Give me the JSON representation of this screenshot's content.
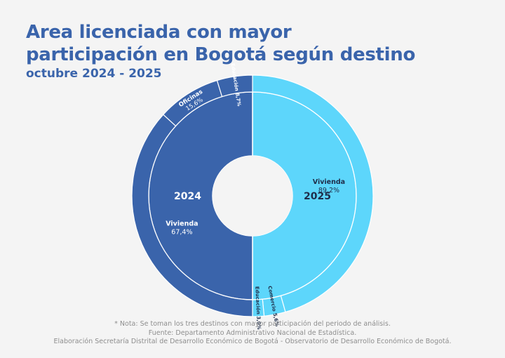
{
  "title_line1": "Area licenciada con mayor",
  "title_line2": "participación en Bogotá según destino",
  "subtitle": "octubre 2024 - 2025",
  "footer": {
    "note": "* Nota: Se toman los tres destinos con mayor participación del periodo de análisis.",
    "source": "Fuente: Departamento Administrativo Nacional de Estadística.",
    "credit": "Elaboración Secretaría Distrital de Desarrollo Económico de Bogotá - Observatorio de Desarrollo Económico de Bogotá."
  },
  "colors": {
    "y2024": "#3a64ab",
    "y2025": "#5dd6fb",
    "separator": "#ffffff",
    "text": "#ffffff",
    "text_dark": "#1f2d4a"
  },
  "chart_data": {
    "type": "pie",
    "subtype": "sunburst",
    "groups": [
      {
        "name": "2024",
        "share": 0.5,
        "categories": [
          "Vivienda",
          "Oficinas",
          "Educación"
        ],
        "values": [
          67.4,
          15.6,
          8.7
        ],
        "labels": [
          "67,4%",
          "15,6%",
          "8,7%"
        ]
      },
      {
        "name": "2025",
        "share": 0.5,
        "categories": [
          "Vivienda",
          "Comercio",
          "Educación"
        ],
        "values": [
          89.2,
          5.6,
          3.0
        ],
        "labels": [
          "89,2%",
          "5,6%",
          "3,0%"
        ]
      }
    ]
  }
}
